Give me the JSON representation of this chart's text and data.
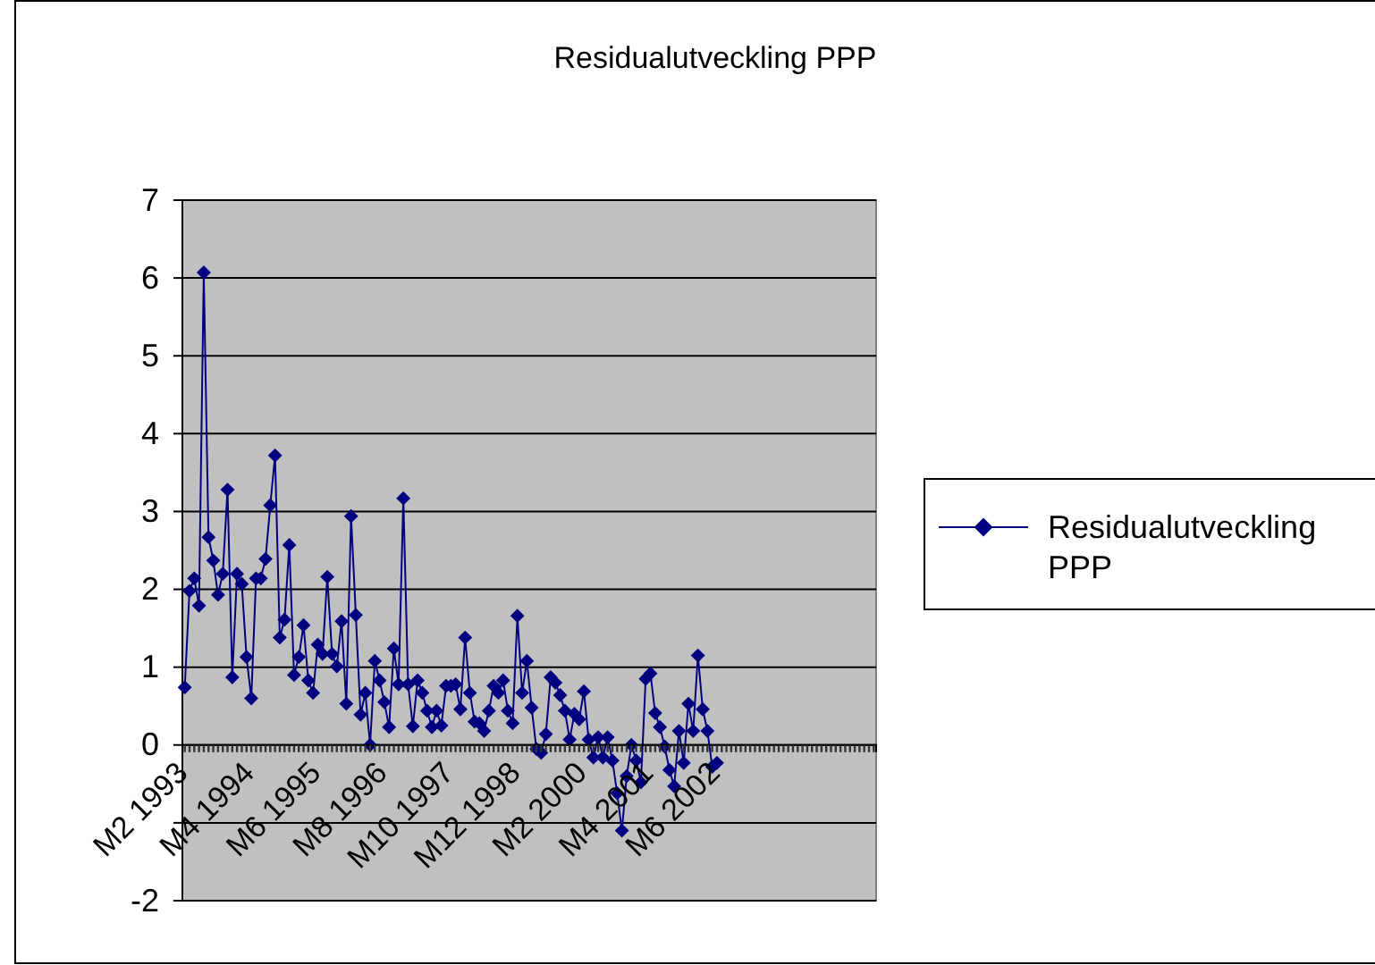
{
  "chart_data": {
    "type": "line",
    "title": "Residualutveckling PPP",
    "categories": [
      "M2 1993",
      null,
      null,
      null,
      null,
      null,
      null,
      null,
      null,
      null,
      null,
      null,
      null,
      null,
      "M4 1994",
      null,
      null,
      null,
      null,
      null,
      null,
      null,
      null,
      null,
      null,
      null,
      null,
      null,
      "M6 1995",
      null,
      null,
      null,
      null,
      null,
      null,
      null,
      null,
      null,
      null,
      null,
      null,
      null,
      "M8 1996",
      null,
      null,
      null,
      null,
      null,
      null,
      null,
      null,
      null,
      null,
      null,
      null,
      null,
      "M10 1997",
      null,
      null,
      null,
      null,
      null,
      null,
      null,
      null,
      null,
      null,
      null,
      null,
      null,
      "M12 1998",
      null,
      null,
      null,
      null,
      null,
      null,
      null,
      null,
      null,
      null,
      null,
      null,
      null,
      "M2 2000",
      null,
      null,
      null,
      null,
      null,
      null,
      null,
      null,
      null,
      null,
      null,
      null,
      null,
      "M4 2001",
      null,
      null,
      null,
      null,
      null,
      null,
      null,
      null,
      null,
      null,
      null,
      null,
      null,
      "M6 2002",
      null,
      null,
      null,
      null,
      null,
      null,
      null,
      null,
      null,
      null,
      null,
      null,
      null,
      null,
      null,
      null,
      null,
      null,
      null,
      null,
      null,
      null,
      null,
      null,
      null,
      null,
      null,
      null,
      null,
      null,
      null,
      null,
      null
    ],
    "series": [
      {
        "name": "Residualutveckling PPP",
        "color": "#000080",
        "values": [
          0.74,
          1.98,
          2.14,
          1.79,
          6.07,
          2.67,
          2.37,
          1.93,
          2.2,
          3.28,
          0.87,
          2.2,
          2.07,
          1.13,
          0.6,
          2.14,
          2.14,
          2.39,
          3.08,
          3.72,
          1.38,
          1.61,
          2.57,
          0.9,
          1.13,
          1.54,
          0.83,
          0.67,
          1.29,
          1.17,
          2.16,
          1.17,
          1.01,
          1.59,
          0.53,
          2.94,
          1.67,
          0.39,
          0.67,
          0.0,
          1.08,
          0.83,
          0.55,
          0.23,
          1.24,
          0.78,
          3.17,
          0.78,
          0.24,
          0.83,
          0.67,
          0.44,
          0.23,
          0.44,
          0.25,
          0.76,
          0.76,
          0.78,
          0.46,
          1.38,
          0.67,
          0.3,
          0.28,
          0.18,
          0.44,
          0.76,
          0.67,
          0.83,
          0.44,
          0.28,
          1.66,
          0.67,
          1.08,
          0.48,
          -0.05,
          -0.1,
          0.14,
          0.87,
          0.8,
          0.64,
          0.44,
          0.07,
          0.4,
          0.33,
          0.69,
          0.07,
          -0.16,
          0.1,
          -0.16,
          0.1,
          -0.2,
          -0.62,
          -1.1,
          -0.4,
          0,
          -0.2,
          -0.48,
          0.85,
          0.92,
          0.41,
          0.23,
          -0.02,
          -0.32,
          -0.53,
          0.18,
          -0.23,
          0.53,
          0.18,
          1.15,
          0.46,
          0.18,
          -0.28,
          -0.23,
          null,
          null,
          null,
          null,
          null,
          null,
          null,
          null,
          null,
          null,
          null,
          null,
          null,
          null,
          null,
          null,
          null,
          null,
          null,
          null,
          null,
          null,
          null,
          null,
          null,
          null,
          null,
          null,
          null,
          null,
          null,
          null,
          null
        ]
      }
    ],
    "ylim": [
      -2,
      7
    ],
    "yticks": [
      -2,
      {
        "value": -1,
        "label": null
      },
      0,
      1,
      2,
      3,
      4,
      5,
      6,
      7
    ],
    "grid": "y",
    "legend": "right",
    "marker": "diamond",
    "line_style": "solid"
  }
}
